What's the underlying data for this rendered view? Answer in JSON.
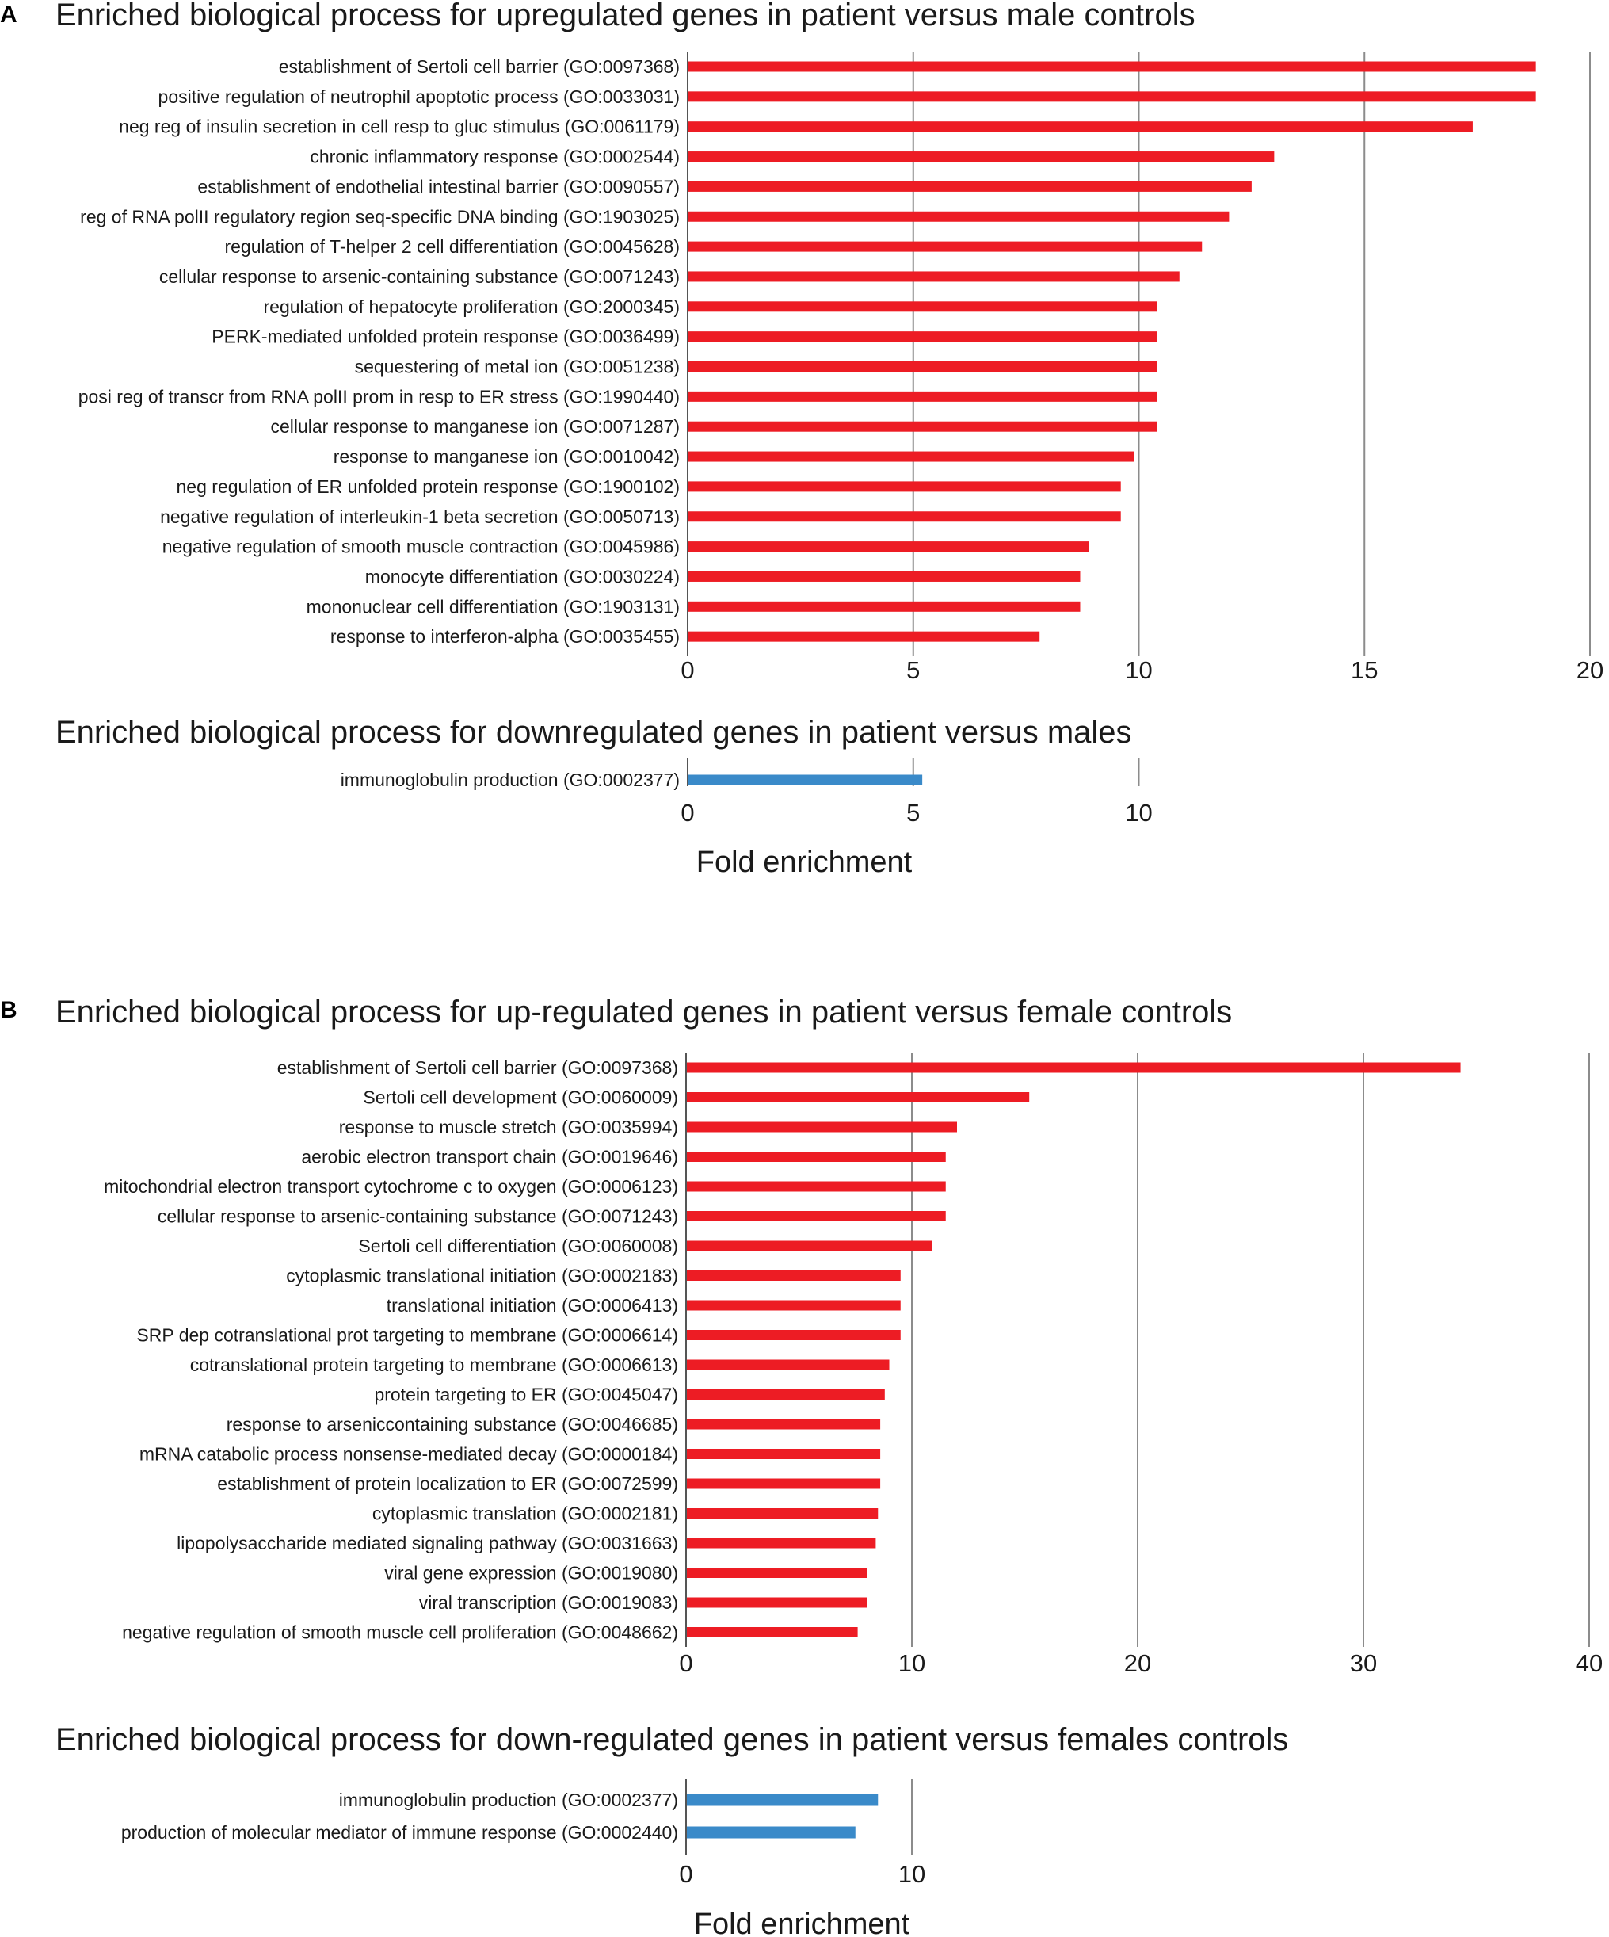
{
  "colors": {
    "up": "#ed1c24",
    "down": "#3a8ac9",
    "grid": "#8c8c8c",
    "text": "#1a1a1a"
  },
  "chart_data": [
    {
      "panel": "A",
      "type": "bar",
      "orientation": "horizontal",
      "title": "Enriched biological process for upregulated genes in patient versus male controls",
      "xlabel": "",
      "xlim": [
        0,
        20
      ],
      "xticks": [
        "0",
        "5",
        "10",
        "15",
        "20"
      ],
      "color": "up",
      "categories": [
        "establishment of Sertoli cell barrier (GO:0097368)",
        "positive regulation of neutrophil apoptotic process (GO:0033031)",
        "neg reg of insulin secretion in cell resp to gluc stimulus (GO:0061179)",
        "chronic inflammatory response (GO:0002544)",
        "establishment of endothelial intestinal barrier (GO:0090557)",
        "reg of RNA polII regulatory region seq-specific DNA binding (GO:1903025)",
        "regulation of T-helper 2 cell differentiation (GO:0045628)",
        "cellular response to arsenic-containing substance (GO:0071243)",
        "regulation of hepatocyte proliferation (GO:2000345)",
        "PERK-mediated unfolded protein response (GO:0036499)",
        "sequestering of metal ion (GO:0051238)",
        "posi reg of transcr from RNA polII prom in resp to ER stress (GO:1990440)",
        "cellular response to manganese ion (GO:0071287)",
        "response to manganese ion (GO:0010042)",
        "neg regulation of ER unfolded protein response (GO:1900102)",
        "negative regulation of interleukin-1 beta secretion (GO:0050713)",
        "negative regulation of smooth muscle contraction (GO:0045986)",
        "monocyte differentiation (GO:0030224)",
        "mononuclear cell differentiation (GO:1903131)",
        "response to interferon-alpha (GO:0035455)"
      ],
      "values": [
        18.8,
        18.8,
        17.4,
        13.0,
        12.5,
        12.0,
        11.4,
        10.9,
        10.4,
        10.4,
        10.4,
        10.4,
        10.4,
        9.9,
        9.6,
        9.6,
        8.9,
        8.7,
        8.7,
        7.8
      ]
    },
    {
      "panel": "",
      "type": "bar",
      "orientation": "horizontal",
      "title": "Enriched biological process for downregulated genes in patient versus males",
      "xlabel": "Fold enrichment",
      "xlim": [
        0,
        10
      ],
      "xticks": [
        "0",
        "5",
        "10"
      ],
      "color": "down",
      "categories": [
        "immunoglobulin production (GO:0002377)"
      ],
      "values": [
        5.2
      ]
    },
    {
      "panel": "B",
      "type": "bar",
      "orientation": "horizontal",
      "title": "Enriched biological process for up-regulated genes in patient versus female controls",
      "xlabel": "",
      "xlim": [
        0,
        40
      ],
      "xticks": [
        "0",
        "10",
        "20",
        "30",
        "40"
      ],
      "color": "up",
      "categories": [
        "establishment of Sertoli cell barrier (GO:0097368)",
        "Sertoli cell development (GO:0060009)",
        "response to muscle stretch (GO:0035994)",
        "aerobic electron transport chain (GO:0019646)",
        "mitochondrial electron transport cytochrome c to oxygen (GO:0006123)",
        "cellular response to arsenic-containing substance (GO:0071243)",
        "Sertoli cell differentiation (GO:0060008)",
        "cytoplasmic translational initiation (GO:0002183)",
        "translational initiation (GO:0006413)",
        "SRP dep cotranslational prot targeting to membrane (GO:0006614)",
        "cotranslational protein targeting to membrane (GO:0006613)",
        "protein targeting to ER (GO:0045047)",
        "response to arseniccontaining substance (GO:0046685)",
        "mRNA catabolic process nonsense-mediated decay (GO:0000184)",
        "establishment of protein localization to ER (GO:0072599)",
        "cytoplasmic translation (GO:0002181)",
        "lipopolysaccharide mediated signaling pathway (GO:0031663)",
        "viral gene expression (GO:0019080)",
        "viral transcription (GO:0019083)",
        "negative regulation of smooth muscle cell proliferation (GO:0048662)"
      ],
      "values": [
        34.3,
        15.2,
        12.0,
        11.5,
        11.5,
        11.5,
        10.9,
        9.5,
        9.5,
        9.5,
        9.0,
        8.8,
        8.6,
        8.6,
        8.6,
        8.5,
        8.4,
        8.0,
        8.0,
        7.6
      ]
    },
    {
      "panel": "",
      "type": "bar",
      "orientation": "horizontal",
      "title": "Enriched biological process for down-regulated genes in patient versus females controls",
      "xlabel": "Fold enrichment",
      "xlim": [
        0,
        10
      ],
      "xticks": [
        "0",
        "10"
      ],
      "color": "down",
      "categories": [
        "immunoglobulin production (GO:0002377)",
        "production of molecular mediator of immune response (GO:0002440)"
      ],
      "values": [
        8.5,
        7.5
      ]
    }
  ]
}
